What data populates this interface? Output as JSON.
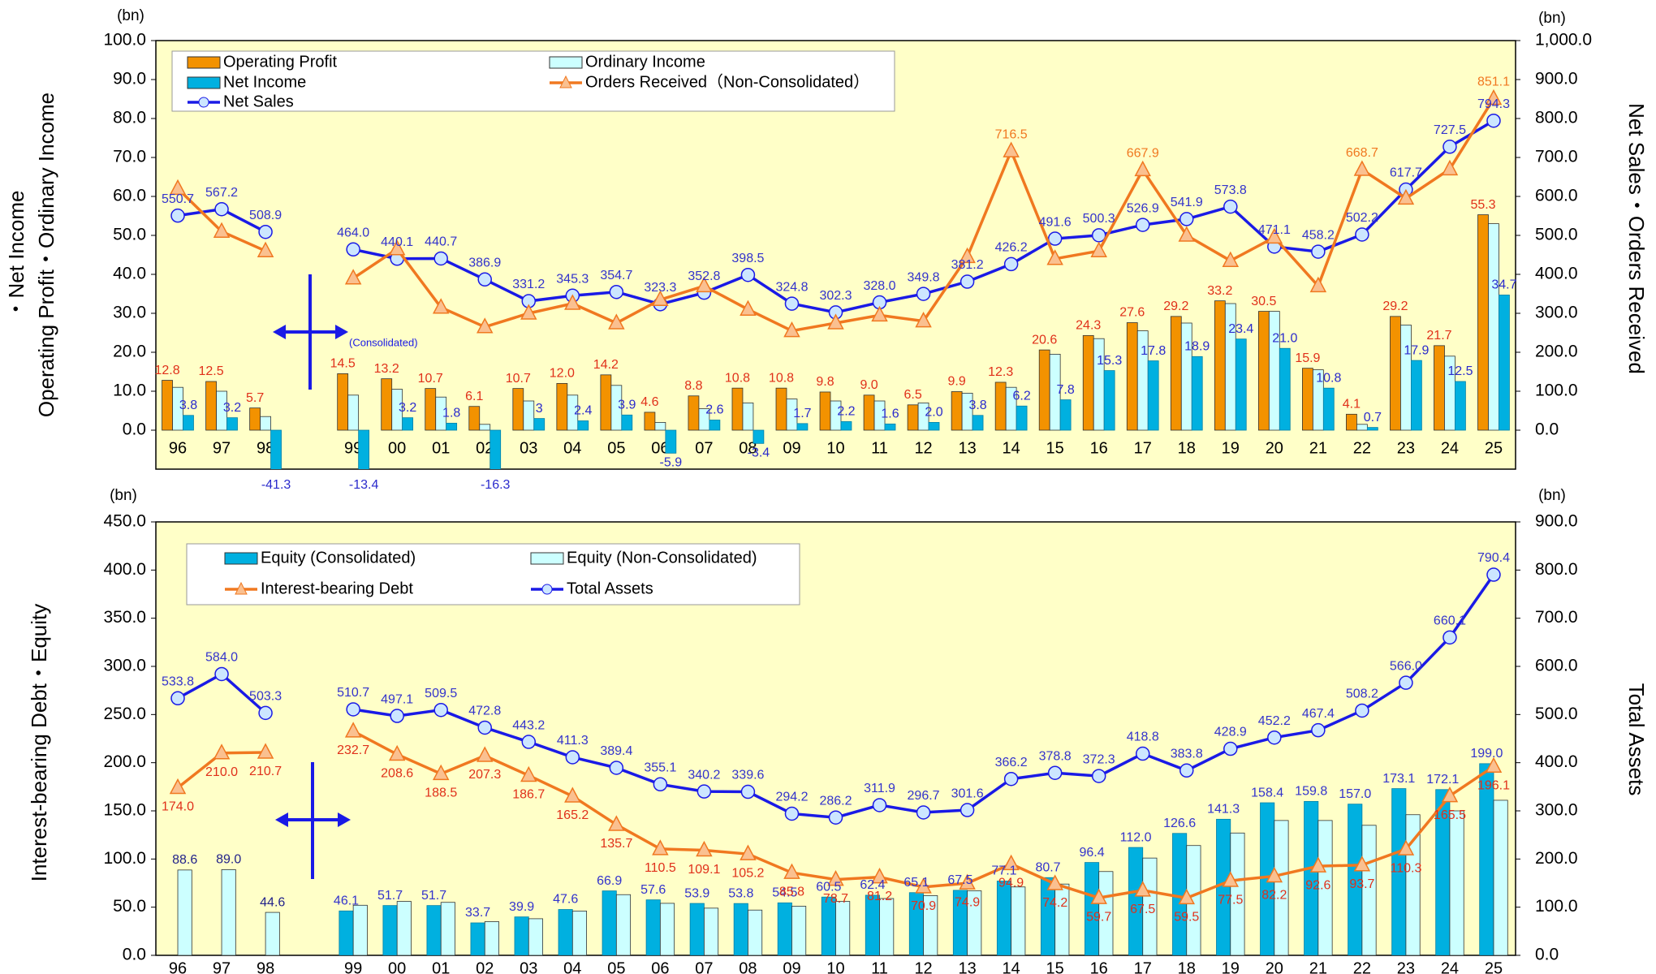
{
  "chart_data": [
    {
      "type": "bar",
      "unit_left": "(bn)",
      "unit_right": "(bn)",
      "y_label_lines": [
        "Operating Profit・Ordinary Income",
        "・Net Income"
      ],
      "y2_label": "Net Sales・Orders Received",
      "annotation": "(Consolidated)",
      "legend": "top-left",
      "categories": [
        "96",
        "97",
        "98",
        null,
        "99",
        "00",
        "01",
        "02",
        "03",
        "04",
        "05",
        "06",
        "07",
        "08",
        "09",
        "10",
        "11",
        "12",
        "13",
        "14",
        "15",
        "16",
        "17",
        "18",
        "19",
        "20",
        "21",
        "22",
        "23",
        "24",
        "25"
      ],
      "ylim": [
        -10,
        100
      ],
      "yticks": [
        {
          "value": 0,
          "label": "0.0"
        },
        {
          "value": 10,
          "label": "10.0"
        },
        {
          "value": 20,
          "label": "20.0"
        },
        {
          "value": 30,
          "label": "30.0"
        },
        {
          "value": 40,
          "label": "40.0"
        },
        {
          "value": 50,
          "label": "50.0"
        },
        {
          "value": 60,
          "label": "60.0"
        },
        {
          "value": 70,
          "label": "70.0"
        },
        {
          "value": 80,
          "label": "80.0"
        },
        {
          "value": 90,
          "label": "90.0"
        },
        {
          "value": 100,
          "label": "100.0"
        }
      ],
      "y2lim": [
        -100,
        1000
      ],
      "y2ticks": [
        {
          "value": 0,
          "label": "0.0"
        },
        {
          "value": 100,
          "label": "100.0"
        },
        {
          "value": 200,
          "label": "200.0"
        },
        {
          "value": 300,
          "label": "300.0"
        },
        {
          "value": 400,
          "label": "400.0"
        },
        {
          "value": 500,
          "label": "500.0"
        },
        {
          "value": 600,
          "label": "600.0"
        },
        {
          "value": 700,
          "label": "700.0"
        },
        {
          "value": 800,
          "label": "800.0"
        },
        {
          "value": 900,
          "label": "900.0"
        },
        {
          "value": 1000,
          "label": "1,000.0"
        }
      ],
      "series": [
        {
          "name": "Operating Profit",
          "type": "bar",
          "color": "#F39200",
          "label_color": "#E0301A",
          "values": [
            12.8,
            12.5,
            5.7,
            null,
            14.5,
            13.2,
            10.7,
            6.1,
            10.7,
            12.0,
            14.2,
            4.6,
            8.8,
            10.8,
            10.8,
            9.8,
            9.0,
            6.5,
            9.9,
            12.3,
            20.6,
            24.3,
            27.6,
            29.2,
            33.2,
            30.5,
            15.9,
            4.1,
            29.2,
            21.7,
            55.3
          ],
          "value_labels": [
            "12.8",
            "12.5",
            "5.7",
            null,
            "14.5",
            "13.2",
            "10.7",
            "6.1",
            "10.7",
            "12.0",
            "14.2",
            "4.6",
            "8.8",
            "10.8",
            "10.8",
            "9.8",
            "9.0",
            "6.5",
            "9.9",
            "12.3",
            "20.6",
            "24.3",
            "27.6",
            "29.2",
            "33.2",
            "30.5",
            "15.9",
            "4.1",
            "29.2",
            "21.7",
            "55.3"
          ]
        },
        {
          "name": "Ordinary Income",
          "type": "bar",
          "color": "#CCFFFF",
          "values": [
            11,
            10,
            3.5,
            null,
            9,
            10.5,
            8.5,
            1.5,
            7.5,
            9,
            11.5,
            2,
            5.5,
            7,
            8,
            7.5,
            7.5,
            7,
            9.5,
            11,
            19.5,
            23.5,
            25.5,
            27.5,
            32.5,
            30.5,
            15.5,
            1.5,
            27,
            19,
            53
          ]
        },
        {
          "name": "Net Income",
          "type": "bar",
          "color": "#00B0E0",
          "label_color": "#2A2ACC",
          "values": [
            3.8,
            3.2,
            -41.3,
            null,
            -13.4,
            3.2,
            1.8,
            -16.3,
            3,
            2.4,
            3.9,
            -5.9,
            2.6,
            -3.4,
            1.7,
            2.2,
            1.6,
            2.0,
            3.8,
            6.2,
            7.8,
            15.3,
            17.8,
            18.9,
            23.4,
            21.0,
            10.8,
            0.7,
            17.9,
            12.5,
            34.7
          ],
          "value_labels": [
            "3.8",
            "3.2",
            "-41.3",
            null,
            "-13.4",
            "3.2",
            "1.8",
            "-16.3",
            "3",
            "2.4",
            "3.9",
            "-5.9",
            "2.6",
            "-3.4",
            "1.7",
            "2.2",
            "1.6",
            "2.0",
            "3.8",
            "6.2",
            "7.8",
            "15.3",
            "17.8",
            "18.9",
            "23.4",
            "21.0",
            "10.8",
            "0.7",
            "17.9",
            "12.5",
            "34.7"
          ]
        },
        {
          "name": "Net Sales",
          "type": "line",
          "axis": "y2",
          "marker": "circle",
          "color": "#1A1AE6",
          "marker_fill": "#CCE6FF",
          "label_color": "#3333CC",
          "values": [
            550.7,
            567.2,
            508.9,
            null,
            464.0,
            440.1,
            440.7,
            386.9,
            331.2,
            345.3,
            354.7,
            323.3,
            352.8,
            398.5,
            324.8,
            302.3,
            328.0,
            349.8,
            381.2,
            426.2,
            491.6,
            500.3,
            526.9,
            541.9,
            573.8,
            471.1,
            458.2,
            502.2,
            617.7,
            727.5,
            794.3
          ],
          "value_labels": [
            "550.7",
            "567.2",
            "508.9",
            null,
            "464.0",
            "440.1",
            "440.7",
            "386.9",
            "331.2",
            "345.3",
            "354.7",
            "323.3",
            "352.8",
            "398.5",
            "324.8",
            "302.3",
            "328.0",
            "349.8",
            "381.2",
            "426.2",
            "491.6",
            "500.3",
            "526.9",
            "541.9",
            "573.8",
            "471.1",
            "458.2",
            "502.2",
            "617.7",
            "727.5",
            "794.3"
          ]
        },
        {
          "name": "Orders Received（Non-Consolidated）",
          "type": "line",
          "axis": "y2",
          "marker": "triangle",
          "color": "#F07820",
          "marker_fill": "#FAC090",
          "label_color": "#F07820",
          "values": [
            620,
            510,
            460,
            null,
            390,
            465,
            315,
            265,
            300,
            325,
            275,
            335,
            370,
            310,
            255,
            275,
            295,
            280,
            445,
            716.5,
            440,
            460,
            667.9,
            500,
            435,
            495,
            370,
            668.7,
            595,
            670,
            851.1
          ],
          "value_labels": [
            null,
            null,
            null,
            null,
            null,
            null,
            null,
            null,
            null,
            null,
            null,
            null,
            null,
            null,
            null,
            null,
            null,
            null,
            null,
            "716.5",
            null,
            null,
            "667.9",
            null,
            null,
            null,
            null,
            "668.7",
            null,
            null,
            "851.1"
          ]
        }
      ]
    },
    {
      "type": "bar",
      "unit_left": "(bn)",
      "unit_right": "(bn)",
      "y_label": "Interest-bearing Debt・Equity",
      "y2_label": "Total Assets",
      "legend": "top-left",
      "categories": [
        "96",
        "97",
        "98",
        null,
        "99",
        "00",
        "01",
        "02",
        "03",
        "04",
        "05",
        "06",
        "07",
        "08",
        "09",
        "10",
        "11",
        "12",
        "13",
        "14",
        "15",
        "16",
        "17",
        "18",
        "19",
        "20",
        "21",
        "22",
        "23",
        "24",
        "25"
      ],
      "ylim": [
        0,
        450
      ],
      "yticks": [
        {
          "value": 0,
          "label": "0.0"
        },
        {
          "value": 50,
          "label": "50.0"
        },
        {
          "value": 100,
          "label": "100.0"
        },
        {
          "value": 150,
          "label": "150.0"
        },
        {
          "value": 200,
          "label": "200.0"
        },
        {
          "value": 250,
          "label": "250.0"
        },
        {
          "value": 300,
          "label": "300.0"
        },
        {
          "value": 350,
          "label": "350.0"
        },
        {
          "value": 400,
          "label": "400.0"
        },
        {
          "value": 450,
          "label": "450.0"
        }
      ],
      "y2lim": [
        0,
        900
      ],
      "y2ticks": [
        {
          "value": 0,
          "label": "0.0"
        },
        {
          "value": 100,
          "label": "100.0"
        },
        {
          "value": 200,
          "label": "200.0"
        },
        {
          "value": 300,
          "label": "300.0"
        },
        {
          "value": 400,
          "label": "400.0"
        },
        {
          "value": 500,
          "label": "500.0"
        },
        {
          "value": 600,
          "label": "600.0"
        },
        {
          "value": 700,
          "label": "700.0"
        },
        {
          "value": 800,
          "label": "800.0"
        },
        {
          "value": 900,
          "label": "900.0"
        }
      ],
      "series": [
        {
          "name": "Equity (Consolidated)",
          "type": "bar",
          "color": "#00B0E0",
          "label_color": "#3333CC",
          "values": [
            null,
            null,
            null,
            null,
            46.1,
            51.7,
            51.7,
            33.7,
            39.9,
            47.6,
            66.9,
            57.6,
            53.9,
            53.8,
            54.5,
            60.5,
            62.4,
            65.1,
            67.5,
            77.1,
            80.7,
            96.4,
            112.0,
            126.6,
            141.3,
            158.4,
            159.8,
            157.0,
            173.1,
            172.1,
            199.0
          ],
          "value_labels": [
            null,
            null,
            null,
            null,
            "46.1",
            "51.7",
            "51.7",
            "33.7",
            "39.9",
            "47.6",
            "66.9",
            "57.6",
            "53.9",
            "53.8",
            "54.5",
            "60.5",
            "62.4",
            "65.1",
            "67.5",
            "77.1",
            "80.7",
            "96.4",
            "112.0",
            "126.6",
            "141.3",
            "158.4",
            "159.8",
            "157.0",
            "173.1",
            "172.1",
            "199.0"
          ]
        },
        {
          "name": "Equity (Non-Consolidated)",
          "type": "bar",
          "color": "#CCFFFF",
          "label_color": "#22228A",
          "values": [
            88.6,
            89.0,
            44.6,
            null,
            52,
            56,
            55,
            35,
            38,
            46,
            63,
            54,
            49,
            47,
            51,
            56,
            59,
            62,
            67,
            71,
            74,
            87,
            101,
            114,
            127,
            140,
            140,
            135,
            146,
            150,
            161
          ],
          "value_labels": [
            "88.6",
            "89.0",
            "44.6",
            null,
            null,
            null,
            null,
            null,
            null,
            null,
            null,
            null,
            null,
            null,
            null,
            null,
            null,
            null,
            null,
            null,
            null,
            null,
            null,
            null,
            null,
            null,
            null,
            null,
            null,
            null,
            null
          ]
        },
        {
          "name": "Interest-bearing Debt",
          "type": "line",
          "marker": "triangle",
          "color": "#F07820",
          "marker_fill": "#FAC090",
          "label_color": "#E0301A",
          "values": [
            174.0,
            210.0,
            210.7,
            null,
            232.7,
            208.6,
            188.5,
            207.3,
            186.7,
            165.2,
            135.7,
            110.5,
            109.1,
            105.2,
            85.8,
            78.7,
            81.2,
            70.9,
            74.9,
            94.9,
            74.2,
            59.7,
            67.5,
            59.5,
            77.5,
            82.2,
            92.6,
            93.7,
            110.3,
            165.5,
            196.1
          ],
          "value_labels": [
            "174.0",
            "210.0",
            "210.7",
            null,
            "232.7",
            "208.6",
            "188.5",
            "207.3",
            "186.7",
            "165.2",
            "135.7",
            "110.5",
            "109.1",
            "105.2",
            "85.8",
            "78.7",
            "81.2",
            "70.9",
            "74.9",
            "94.9",
            "74.2",
            "59.7",
            "67.5",
            "59.5",
            "77.5",
            "82.2",
            "92.6",
            "93.7",
            "110.3",
            "165.5",
            "196.1"
          ]
        },
        {
          "name": "Total Assets",
          "type": "line",
          "axis": "y2",
          "marker": "circle",
          "color": "#1A1AE6",
          "marker_fill": "#CCE6FF",
          "label_color": "#3333CC",
          "values": [
            533.8,
            584.0,
            503.3,
            null,
            510.7,
            497.1,
            509.5,
            472.8,
            443.2,
            411.3,
            389.4,
            355.1,
            340.2,
            339.6,
            294.2,
            286.2,
            311.9,
            296.7,
            301.6,
            366.2,
            378.8,
            372.3,
            418.8,
            383.8,
            428.9,
            452.2,
            467.4,
            508.2,
            566.0,
            660.1,
            790.4
          ],
          "value_labels": [
            "533.8",
            "584.0",
            "503.3",
            null,
            "510.7",
            "497.1",
            "509.5",
            "472.8",
            "443.2",
            "411.3",
            "389.4",
            "355.1",
            "340.2",
            "339.6",
            "294.2",
            "286.2",
            "311.9",
            "296.7",
            "301.6",
            "366.2",
            "378.8",
            "372.3",
            "418.8",
            "383.8",
            "428.9",
            "452.2",
            "467.4",
            "508.2",
            "566.0",
            "660.1",
            "790.4"
          ]
        }
      ]
    }
  ]
}
